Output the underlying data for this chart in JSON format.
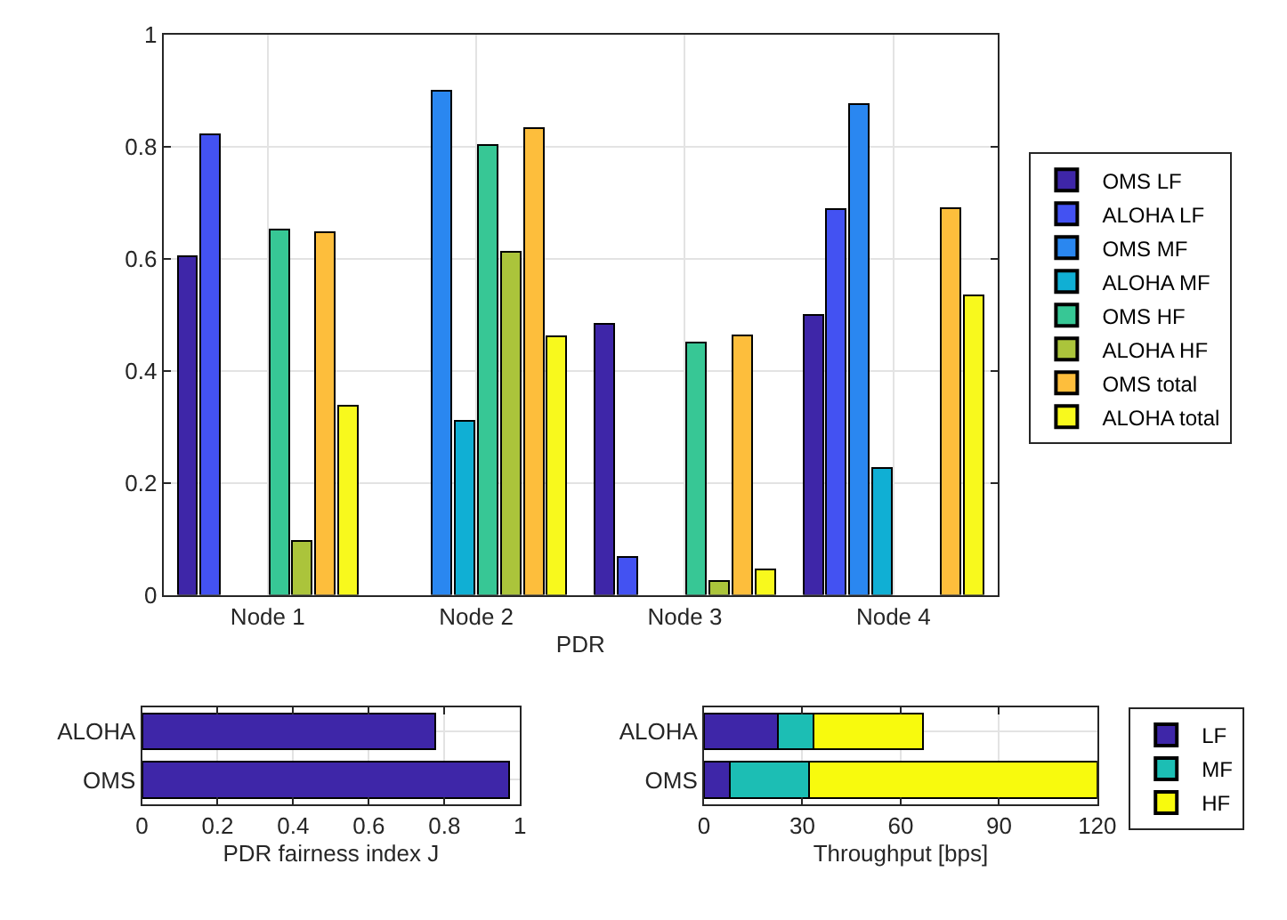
{
  "chart_data": [
    {
      "type": "bar",
      "xlabel": "PDR",
      "categories": [
        "Node 1",
        "Node 2",
        "Node 3",
        "Node 4"
      ],
      "series": [
        {
          "name": "OMS LF",
          "color": "#3e26a8",
          "values": [
            0.605,
            null,
            0.484,
            0.5
          ]
        },
        {
          "name": "ALOHA LF",
          "color": "#4352f2",
          "values": [
            0.823,
            null,
            0.067,
            0.689
          ]
        },
        {
          "name": "OMS MF",
          "color": "#2a87f0",
          "values": [
            null,
            0.9,
            null,
            0.877
          ]
        },
        {
          "name": "ALOHA MF",
          "color": "#10afd4",
          "values": [
            null,
            0.31,
            null,
            0.227
          ]
        },
        {
          "name": "OMS HF",
          "color": "#37c795",
          "values": [
            0.652,
            0.803,
            0.451,
            null
          ]
        },
        {
          "name": "ALOHA HF",
          "color": "#abc43b",
          "values": [
            0.097,
            0.613,
            0.025,
            null
          ]
        },
        {
          "name": "OMS total",
          "color": "#fdbe3c",
          "values": [
            0.647,
            0.833,
            0.463,
            0.69
          ]
        },
        {
          "name": "ALOHA total",
          "color": "#f8f91d",
          "values": [
            0.338,
            0.462,
            0.046,
            0.535
          ]
        }
      ],
      "ylim": [
        0,
        1
      ],
      "yticks": [
        0,
        0.2,
        0.4,
        0.6,
        0.8,
        1
      ],
      "grid": true,
      "legend": "right"
    },
    {
      "type": "bar",
      "orientation": "horizontal",
      "xlabel": "PDR fairness index J",
      "categories": [
        "ALOHA",
        "OMS"
      ],
      "values": [
        0.775,
        0.97
      ],
      "color": "#3e26a8",
      "xlim": [
        0,
        1
      ],
      "xticks": [
        0,
        0.2,
        0.4,
        0.6,
        0.8,
        1
      ],
      "grid": true
    },
    {
      "type": "bar",
      "orientation": "horizontal",
      "stacked": true,
      "xlabel": "Throughput [bps]",
      "categories": [
        "ALOHA",
        "OMS"
      ],
      "series": [
        {
          "name": "LF",
          "color": "#3e26a8",
          "values": [
            22.6,
            7.8
          ]
        },
        {
          "name": "MF",
          "color": "#1cbeb4",
          "values": [
            10.8,
            24.3
          ]
        },
        {
          "name": "HF",
          "color": "#f8fa0d",
          "values": [
            33.4,
            87.9
          ]
        }
      ],
      "xlim": [
        0,
        120
      ],
      "xticks": [
        0,
        30,
        60,
        90,
        120
      ],
      "grid": true,
      "legend": "right"
    }
  ]
}
